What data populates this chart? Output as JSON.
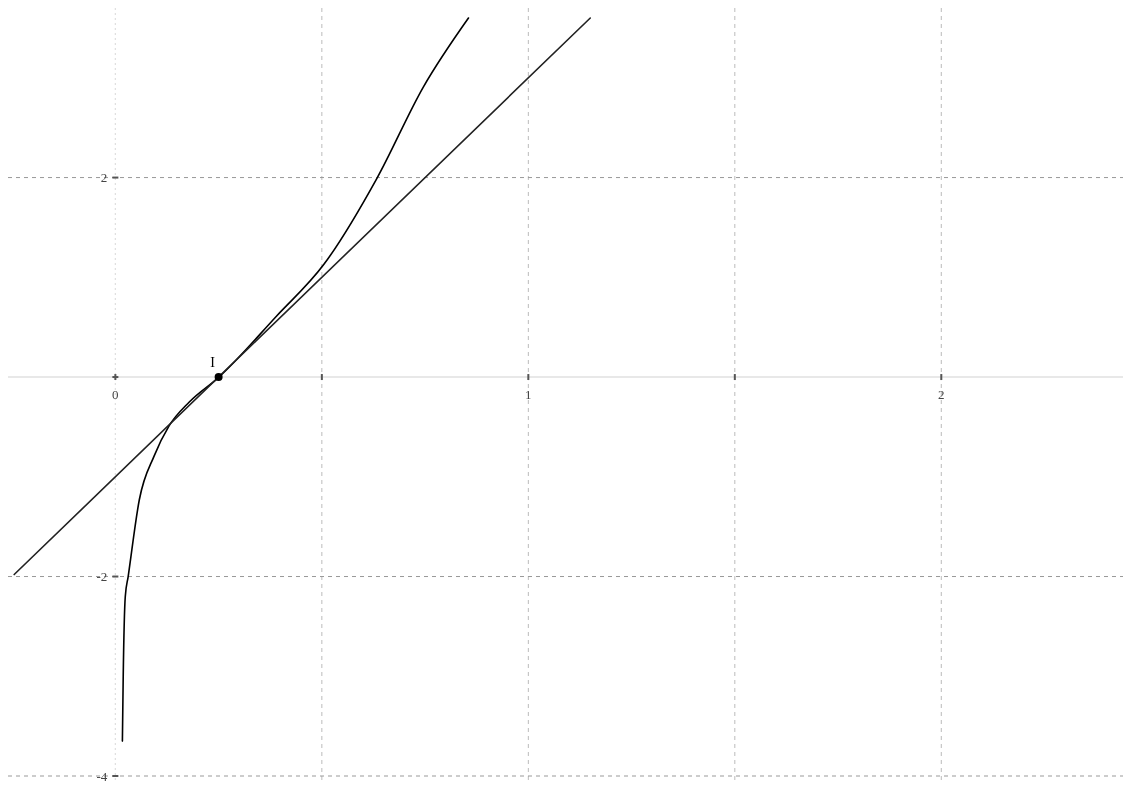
{
  "chart_data": {
    "type": "line",
    "xlim": [
      -0.26,
      2.44
    ],
    "ylim": [
      -4.05,
      3.7
    ],
    "xticks": [
      0,
      {
        "value": 0.5,
        "label": null
      },
      1,
      {
        "value": 1.5,
        "label": null
      },
      2
    ],
    "yticks": [
      -4,
      -2,
      {
        "value": 0,
        "label": null
      },
      2
    ],
    "grid": true,
    "marker": "none",
    "line_style": "solid",
    "annotations": [
      {
        "text": "I",
        "x": 0.25,
        "y": 0
      }
    ],
    "series": [
      {
        "type": "line",
        "color": "#000000",
        "x": [
          0.017,
          0.019,
          0.024,
          0.031,
          0.058,
          0.094,
          0.13,
          0.179,
          0.251,
          0.39,
          0.505,
          0.633,
          0.746,
          0.855
        ],
        "values": [
          -3.65,
          -3.0,
          -2.2,
          -2.0,
          -1.23,
          -0.79,
          -0.49,
          -0.25,
          0,
          0.61,
          1.13,
          1.99,
          2.91,
          3.6
        ]
      },
      {
        "type": "line",
        "color": "#222222",
        "x": [
          -0.245,
          1.15
        ],
        "values": [
          -1.98,
          3.6
        ]
      },
      {
        "type": "scatter",
        "color": "#000000",
        "marker": "circle",
        "x": [
          0.25
        ],
        "values": [
          0
        ]
      }
    ]
  }
}
